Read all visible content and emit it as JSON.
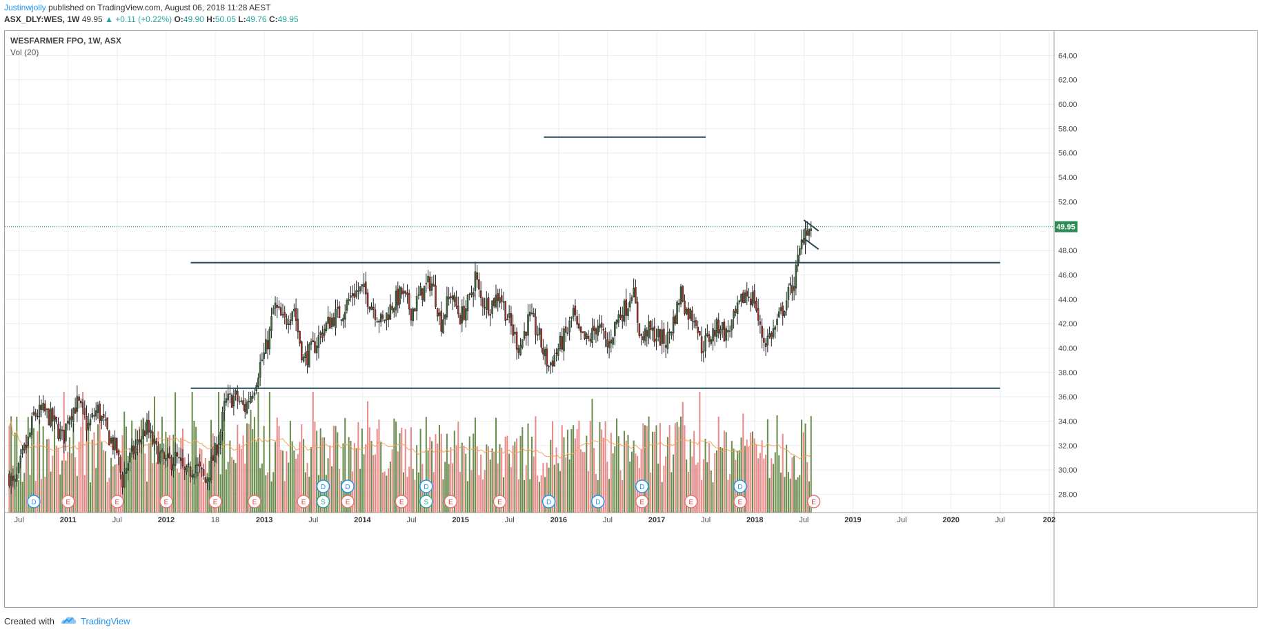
{
  "header": {
    "author": "Justinwjolly",
    "published_text": "published on TradingView.com, August 06, 2018 11:28 AEST",
    "symbol_info": "ASX_DLY:WES, 1W",
    "last_price": "49.95",
    "change": "▲ +0.11 (+0.22%)",
    "open_label": "O:",
    "open_value": "49.90",
    "high_label": "H:",
    "high_value": "50.05",
    "low_label": "L:",
    "low_value": "49.76",
    "close_label": "C:",
    "close_value": "49.95"
  },
  "chart": {
    "title": "WESFARMER FPO, 1W, ASX",
    "volume_label": "Vol (20)",
    "current_price_tag": "49.95"
  },
  "footer": {
    "created_with": "Created with",
    "brand": "TradingView"
  },
  "colors": {
    "up_candle": "#26a69a",
    "down_candle": "#ef5350",
    "vol_up": "#6b8e4e",
    "vol_down": "#e88a8a",
    "trendline": "#234a52",
    "grid": "#e8eef2",
    "ma_line": "#f5a35c",
    "price_tag": "#2e8b57"
  },
  "chart_data": {
    "type": "candlestick",
    "symbol": "ASX_DLY:WES",
    "interval": "1W",
    "ylim": [
      26.5,
      66
    ],
    "y_ticks": [
      "64.00",
      "62.00",
      "60.00",
      "58.00",
      "56.00",
      "54.00",
      "52.00",
      "50.00",
      "48.00",
      "46.00",
      "44.00",
      "42.00",
      "40.00",
      "38.00",
      "36.00",
      "34.00",
      "32.00",
      "30.00",
      "28.00"
    ],
    "y_tick_values": [
      64,
      62,
      60,
      58,
      56,
      54,
      52,
      50,
      48,
      46,
      44,
      42,
      40,
      38,
      36,
      34,
      32,
      30,
      28
    ],
    "x_ticks": [
      {
        "t": 2010.5,
        "label": "Jul"
      },
      {
        "t": 2011.0,
        "label": "2011"
      },
      {
        "t": 2011.5,
        "label": "Jul"
      },
      {
        "t": 2012.0,
        "label": "2012"
      },
      {
        "t": 2012.5,
        "label": "18"
      },
      {
        "t": 2013.0,
        "label": "2013"
      },
      {
        "t": 2013.5,
        "label": "Jul"
      },
      {
        "t": 2014.0,
        "label": "2014"
      },
      {
        "t": 2014.5,
        "label": "Jul"
      },
      {
        "t": 2015.0,
        "label": "2015"
      },
      {
        "t": 2015.5,
        "label": "Jul"
      },
      {
        "t": 2016.0,
        "label": "2016"
      },
      {
        "t": 2016.5,
        "label": "Jul"
      },
      {
        "t": 2017.0,
        "label": "2017"
      },
      {
        "t": 2017.5,
        "label": "Jul"
      },
      {
        "t": 2018.0,
        "label": "2018"
      },
      {
        "t": 2018.5,
        "label": "Jul"
      },
      {
        "t": 2019.0,
        "label": "2019"
      },
      {
        "t": 2019.5,
        "label": "Jul"
      },
      {
        "t": 2020.0,
        "label": "2020"
      },
      {
        "t": 2020.5,
        "label": "Jul"
      },
      {
        "t": 2021.0,
        "label": "202"
      }
    ],
    "price_path": [
      [
        2010.4,
        29.5
      ],
      [
        2010.45,
        28.5
      ],
      [
        2010.5,
        30.0
      ],
      [
        2010.55,
        31.5
      ],
      [
        2010.6,
        32.5
      ],
      [
        2010.65,
        34.5
      ],
      [
        2010.75,
        34.8
      ],
      [
        2010.85,
        34.0
      ],
      [
        2010.95,
        32.5
      ],
      [
        2011.0,
        34.5
      ],
      [
        2011.1,
        35.5
      ],
      [
        2011.2,
        33.5
      ],
      [
        2011.3,
        35.0
      ],
      [
        2011.4,
        33.0
      ],
      [
        2011.5,
        31.5
      ],
      [
        2011.55,
        29.0
      ],
      [
        2011.6,
        30.5
      ],
      [
        2011.7,
        32.0
      ],
      [
        2011.8,
        33.5
      ],
      [
        2011.9,
        31.5
      ],
      [
        2012.0,
        30.5
      ],
      [
        2012.1,
        31.0
      ],
      [
        2012.2,
        29.5
      ],
      [
        2012.3,
        30.5
      ],
      [
        2012.4,
        29.0
      ],
      [
        2012.5,
        31.5
      ],
      [
        2012.55,
        33.0
      ],
      [
        2012.6,
        35.5
      ],
      [
        2012.7,
        36.0
      ],
      [
        2012.8,
        35.0
      ],
      [
        2012.9,
        37.0
      ],
      [
        2012.95,
        38.5
      ],
      [
        2013.0,
        39.5
      ],
      [
        2013.05,
        41.0
      ],
      [
        2013.1,
        43.5
      ],
      [
        2013.2,
        42.0
      ],
      [
        2013.3,
        43.5
      ],
      [
        2013.35,
        41.0
      ],
      [
        2013.4,
        39.0
      ],
      [
        2013.5,
        40.0
      ],
      [
        2013.6,
        41.5
      ],
      [
        2013.7,
        42.5
      ],
      [
        2013.8,
        43.0
      ],
      [
        2013.9,
        44.5
      ],
      [
        2014.0,
        44.8
      ],
      [
        2014.1,
        43.5
      ],
      [
        2014.2,
        42.0
      ],
      [
        2014.3,
        43.5
      ],
      [
        2014.4,
        44.5
      ],
      [
        2014.5,
        43.0
      ],
      [
        2014.6,
        44.5
      ],
      [
        2014.7,
        45.5
      ],
      [
        2014.75,
        44.0
      ],
      [
        2014.8,
        42.0
      ],
      [
        2014.9,
        44.5
      ],
      [
        2015.0,
        42.5
      ],
      [
        2015.1,
        44.0
      ],
      [
        2015.15,
        46.0
      ],
      [
        2015.2,
        44.0
      ],
      [
        2015.3,
        43.5
      ],
      [
        2015.4,
        44.5
      ],
      [
        2015.5,
        42.0
      ],
      [
        2015.6,
        40.0
      ],
      [
        2015.7,
        42.5
      ],
      [
        2015.8,
        41.0
      ],
      [
        2015.85,
        39.5
      ],
      [
        2015.9,
        38.5
      ],
      [
        2016.0,
        40.0
      ],
      [
        2016.1,
        41.5
      ],
      [
        2016.15,
        43.0
      ],
      [
        2016.2,
        41.0
      ],
      [
        2016.3,
        40.5
      ],
      [
        2016.4,
        42.0
      ],
      [
        2016.5,
        40.0
      ],
      [
        2016.6,
        42.5
      ],
      [
        2016.7,
        43.5
      ],
      [
        2016.75,
        45.0
      ],
      [
        2016.8,
        42.5
      ],
      [
        2016.85,
        40.5
      ],
      [
        2016.9,
        41.5
      ],
      [
        2017.0,
        41.0
      ],
      [
        2017.1,
        40.5
      ],
      [
        2017.2,
        43.0
      ],
      [
        2017.25,
        44.8
      ],
      [
        2017.3,
        43.0
      ],
      [
        2017.4,
        42.5
      ],
      [
        2017.45,
        40.0
      ],
      [
        2017.5,
        40.5
      ],
      [
        2017.6,
        41.5
      ],
      [
        2017.65,
        42.0
      ],
      [
        2017.7,
        41.0
      ],
      [
        2017.8,
        42.5
      ],
      [
        2017.9,
        44.5
      ],
      [
        2018.0,
        44.0
      ],
      [
        2018.05,
        41.5
      ],
      [
        2018.1,
        40.5
      ],
      [
        2018.2,
        41.5
      ],
      [
        2018.3,
        43.5
      ],
      [
        2018.35,
        44.5
      ],
      [
        2018.4,
        45.5
      ],
      [
        2018.45,
        47.5
      ],
      [
        2018.5,
        49.5
      ],
      [
        2018.52,
        50.0
      ],
      [
        2018.56,
        49.6
      ],
      [
        2018.59,
        49.95
      ]
    ],
    "volume_ma_color": "#f5a35c",
    "trendlines": [
      {
        "name": "resistance",
        "price": 47.0,
        "from": 2012.25,
        "to": 2020.5
      },
      {
        "name": "support",
        "price": 36.7,
        "from": 2012.25,
        "to": 2020.5
      },
      {
        "name": "upper-target",
        "price": 57.3,
        "from": 2015.85,
        "to": 2017.5
      },
      {
        "name": "flag-upper",
        "from_t": 2018.5,
        "from_p": 50.5,
        "to_t": 2018.65,
        "to_p": 49.6
      },
      {
        "name": "flag-lower",
        "from_t": 2018.5,
        "from_p": 49.0,
        "to_t": 2018.65,
        "to_p": 48.1
      }
    ],
    "current_price": 49.95,
    "event_markers": [
      {
        "t": 2010.65,
        "label": "D",
        "kind": "dividend",
        "row": 0
      },
      {
        "t": 2011.0,
        "label": "E",
        "kind": "earnings",
        "row": 0
      },
      {
        "t": 2011.5,
        "label": "E",
        "kind": "earnings",
        "row": 0
      },
      {
        "t": 2012.0,
        "label": "E",
        "kind": "earnings",
        "row": 0
      },
      {
        "t": 2012.5,
        "label": "E",
        "kind": "earnings",
        "row": 0
      },
      {
        "t": 2012.9,
        "label": "E",
        "kind": "earnings",
        "row": 0
      },
      {
        "t": 2013.4,
        "label": "E",
        "kind": "earnings",
        "row": 0
      },
      {
        "t": 2013.6,
        "label": "D",
        "kind": "dividend",
        "row": 1
      },
      {
        "t": 2013.6,
        "label": "S",
        "kind": "split",
        "row": 0
      },
      {
        "t": 2013.85,
        "label": "D",
        "kind": "dividend",
        "row": 1
      },
      {
        "t": 2013.85,
        "label": "E",
        "kind": "earnings",
        "row": 0
      },
      {
        "t": 2014.4,
        "label": "E",
        "kind": "earnings",
        "row": 0
      },
      {
        "t": 2014.65,
        "label": "D",
        "kind": "dividend",
        "row": 1
      },
      {
        "t": 2014.65,
        "label": "S",
        "kind": "split",
        "row": 0
      },
      {
        "t": 2014.9,
        "label": "E",
        "kind": "earnings",
        "row": 0
      },
      {
        "t": 2015.4,
        "label": "E",
        "kind": "earnings",
        "row": 0
      },
      {
        "t": 2015.9,
        "label": "D",
        "kind": "dividend",
        "row": 0
      },
      {
        "t": 2016.4,
        "label": "D",
        "kind": "dividend",
        "row": 0
      },
      {
        "t": 2016.85,
        "label": "D",
        "kind": "dividend",
        "row": 1
      },
      {
        "t": 2016.85,
        "label": "E",
        "kind": "earnings",
        "row": 0
      },
      {
        "t": 2017.35,
        "label": "E",
        "kind": "earnings",
        "row": 0
      },
      {
        "t": 2017.85,
        "label": "D",
        "kind": "dividend",
        "row": 1
      },
      {
        "t": 2017.85,
        "label": "E",
        "kind": "earnings",
        "row": 0
      },
      {
        "t": 2018.6,
        "label": "E",
        "kind": "earnings",
        "row": 0
      }
    ]
  }
}
